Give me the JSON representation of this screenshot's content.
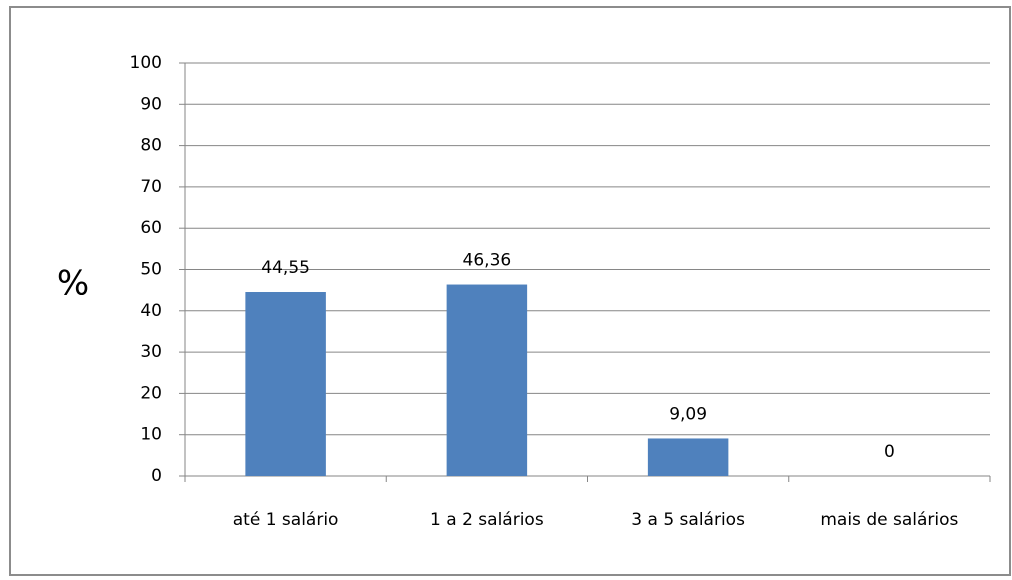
{
  "chart_data": {
    "type": "bar",
    "y_label": "%",
    "categories": [
      "até 1 salário",
      "1 a 2 salários",
      "3 a 5 salários",
      "mais de salários"
    ],
    "values": [
      44.55,
      46.36,
      9.09,
      0
    ],
    "value_labels": [
      "44,55",
      "46,36",
      "9,09",
      "0"
    ],
    "color": "#4f81bd",
    "ylim": [
      0,
      100
    ],
    "yticks": [
      0,
      10,
      20,
      30,
      40,
      50,
      60,
      70,
      80,
      90,
      100
    ],
    "grid": true
  }
}
